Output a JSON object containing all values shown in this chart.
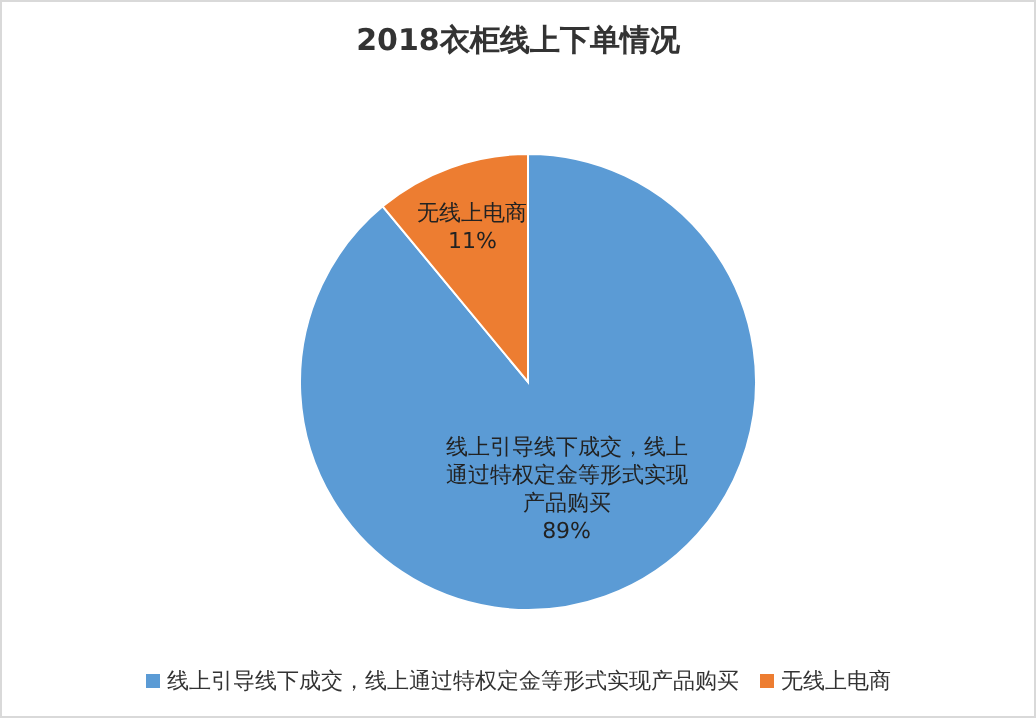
{
  "chart_data": {
    "type": "pie",
    "title": "2018衣柜线上下单情况",
    "categories": [
      "线上引导线下成交，线上通过特权定金等形式实现产品购买",
      "无线上电商"
    ],
    "values": [
      89,
      11
    ],
    "colors": [
      "#5b9bd5",
      "#ed7d31"
    ],
    "value_labels": [
      "89%",
      "11%"
    ],
    "legend": "bottom"
  }
}
